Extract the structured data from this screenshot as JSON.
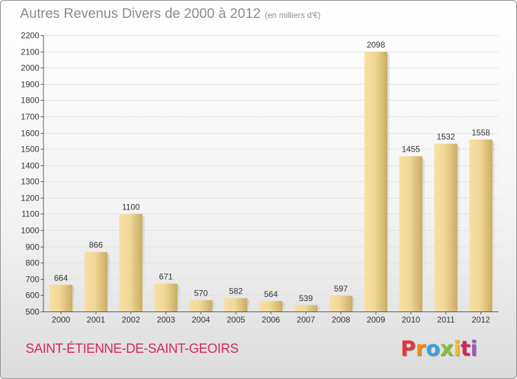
{
  "header": {
    "title": "Autres Revenus Divers de 2000 à 2012",
    "unit": "(en milliers d'€)"
  },
  "footer": {
    "commune": "SAINT-ÉTIENNE-DE-SAINT-GEOIRS",
    "logo_letters": [
      "P",
      "r",
      "o",
      "x",
      "i",
      "t",
      "i"
    ],
    "logo_colors": [
      "#e0393e",
      "#f08c1a",
      "#3aa3d9",
      "#86bf3a",
      "#f2c21c",
      "#d4265e",
      "#9b59b6"
    ]
  },
  "chart_data": {
    "type": "bar",
    "title": "Autres Revenus Divers de 2000 à 2012",
    "subtitle": "(en milliers d'€)",
    "categories": [
      "2000",
      "2001",
      "2002",
      "2003",
      "2004",
      "2005",
      "2006",
      "2007",
      "2008",
      "2009",
      "2010",
      "2011",
      "2012"
    ],
    "values": [
      664,
      866,
      1100,
      671,
      570,
      582,
      564,
      539,
      597,
      2098,
      1455,
      1532,
      1558
    ],
    "ylim": [
      500,
      2200
    ],
    "yticks": [
      500,
      600,
      700,
      800,
      900,
      1000,
      1100,
      1200,
      1300,
      1400,
      1500,
      1600,
      1700,
      1800,
      1900,
      2000,
      2100,
      2200
    ],
    "grid": true,
    "bar_color": "#e8cf8a",
    "xlabel": "",
    "ylabel": ""
  }
}
